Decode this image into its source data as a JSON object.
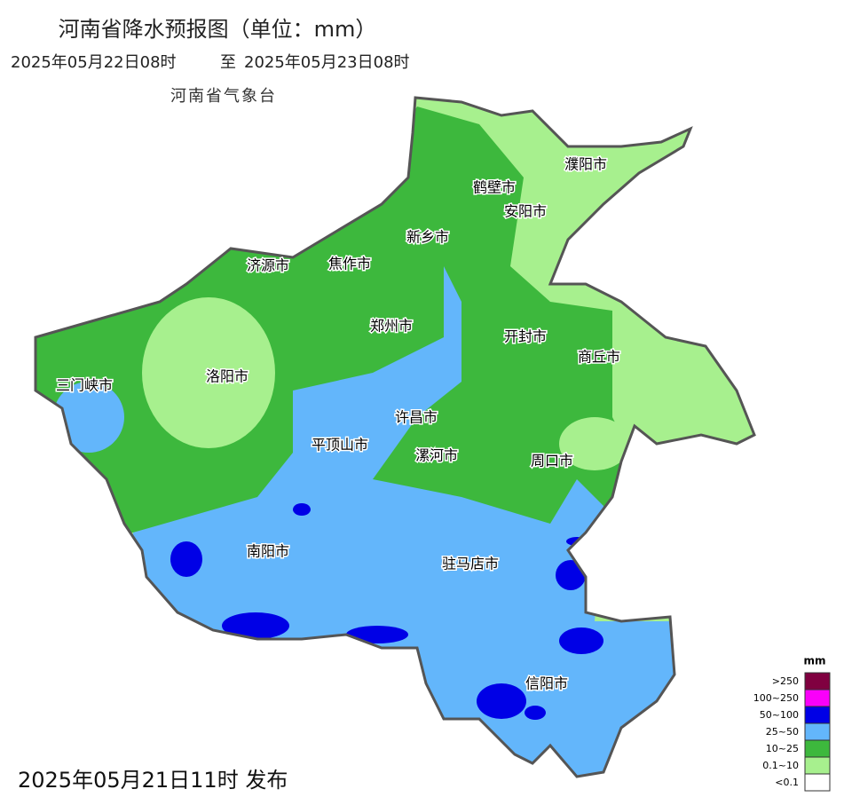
{
  "header": {
    "title": "河南省降水预报图（单位：mm）",
    "period_start": "2025年05月22日08时",
    "period_sep": "至",
    "period_end": "2025年05月23日08时",
    "agency": "河南省气象台"
  },
  "cities": [
    {
      "label": "濮阳市"
    },
    {
      "label": "鹤壁市"
    },
    {
      "label": "安阳市"
    },
    {
      "label": "新乡市"
    },
    {
      "label": "济源市"
    },
    {
      "label": "焦作市"
    },
    {
      "label": "郑州市"
    },
    {
      "label": "开封市"
    },
    {
      "label": "商丘市"
    },
    {
      "label": "三门峡市"
    },
    {
      "label": "洛阳市"
    },
    {
      "label": "许昌市"
    },
    {
      "label": "平顶山市"
    },
    {
      "label": "漯河市"
    },
    {
      "label": "周口市"
    },
    {
      "label": "南阳市"
    },
    {
      "label": "驻马店市"
    },
    {
      "label": "信阳市"
    }
  ],
  "legend": {
    "unit": "mm",
    "items": [
      {
        "label": ">250",
        "color": "#800040"
      },
      {
        "label": "100~250",
        "color": "#fa00fa"
      },
      {
        "label": "50~100",
        "color": "#0000e6"
      },
      {
        "label": "25~50",
        "color": "#63b6fb"
      },
      {
        "label": "10~25",
        "color": "#3db83d"
      },
      {
        "label": "0.1~10",
        "color": "#a7f08e"
      },
      {
        "label": "<0.1",
        "color": "#ffffff"
      }
    ]
  },
  "footer": {
    "issued": "2025年05月21日11时 发布"
  }
}
